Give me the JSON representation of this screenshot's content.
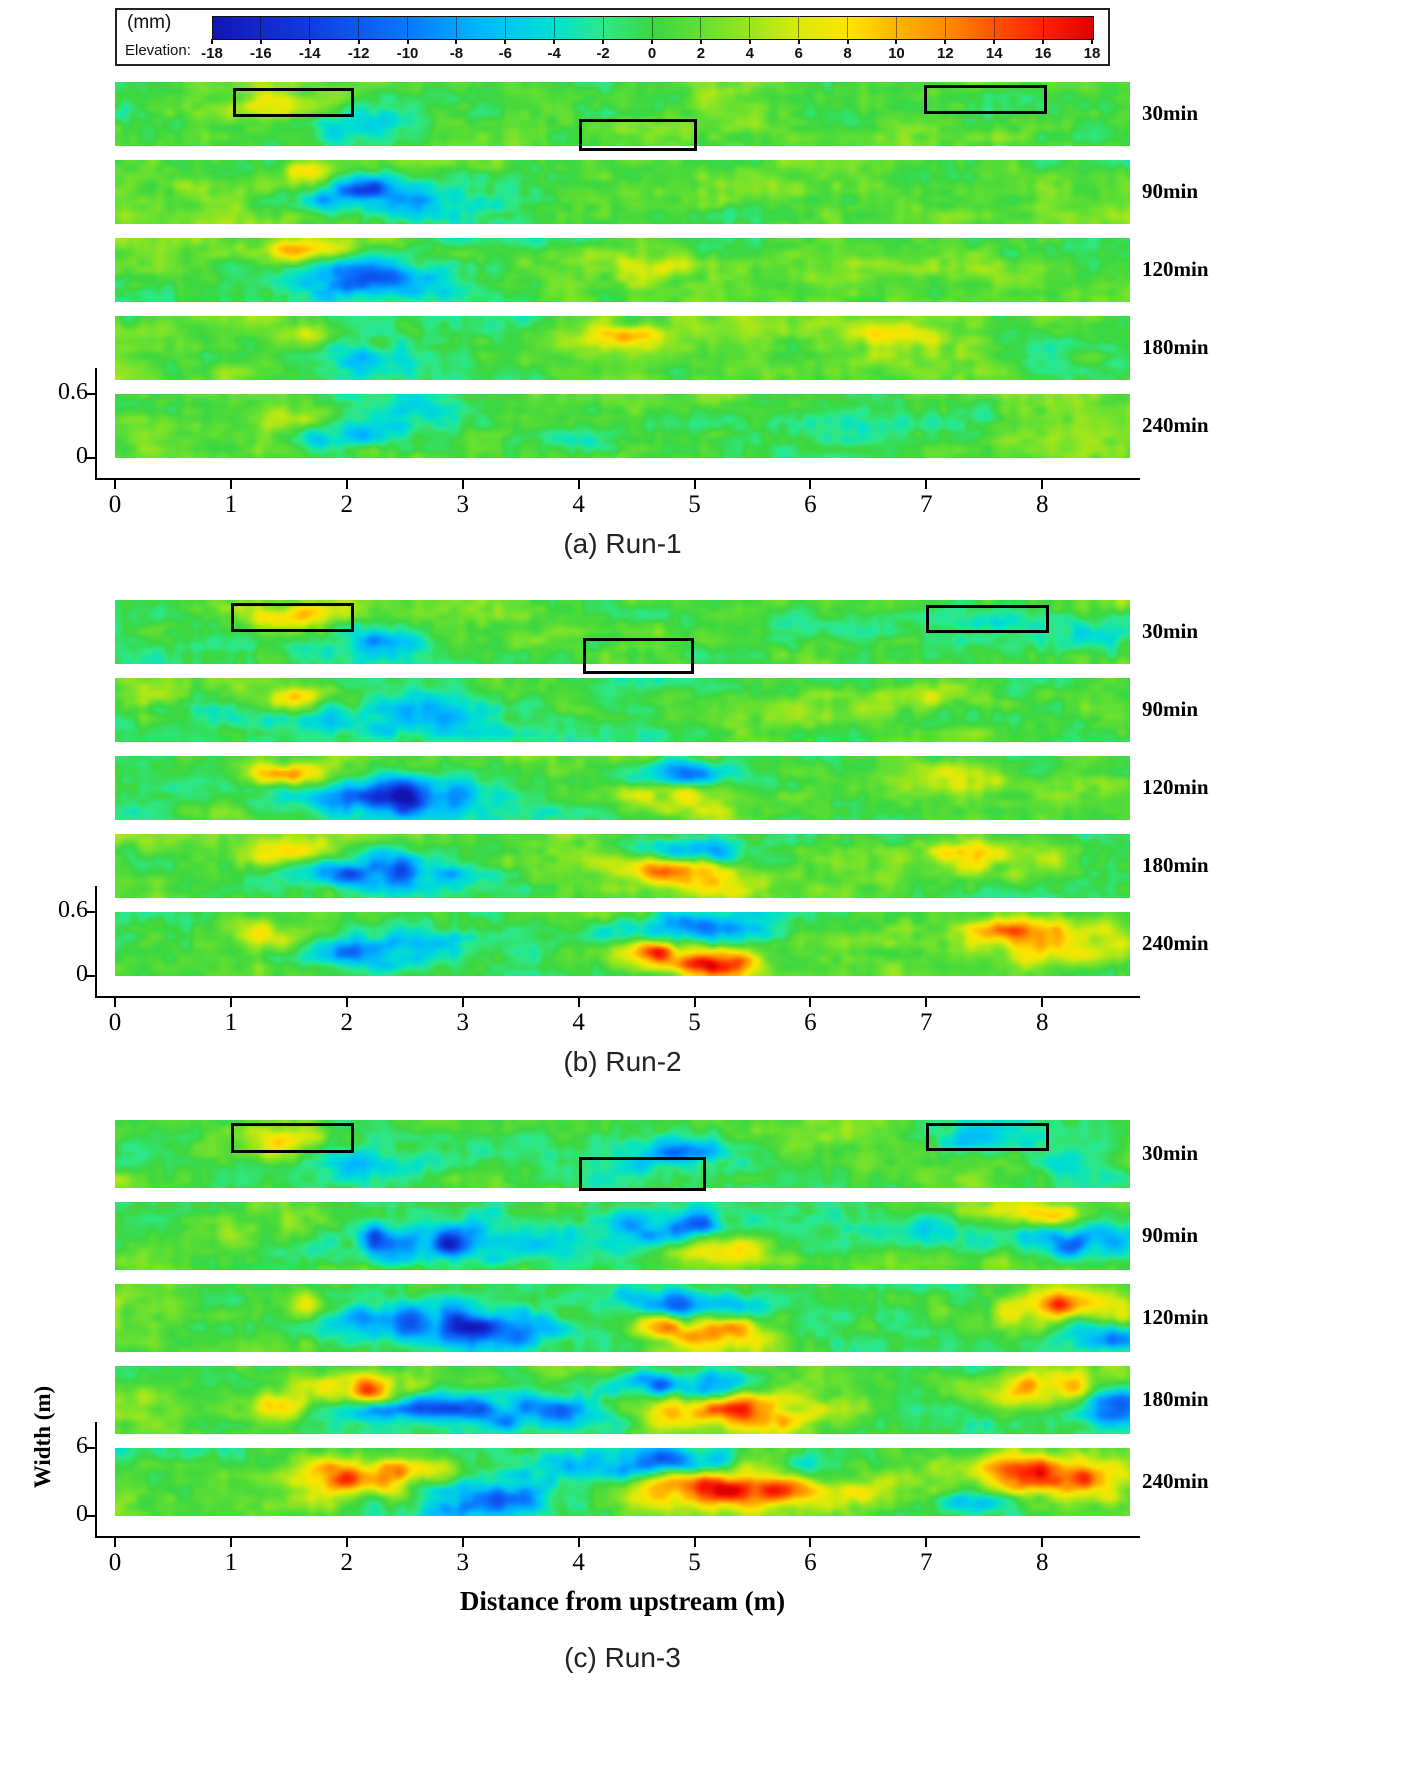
{
  "legend": {
    "unit": "(mm)",
    "label": "Elevation:"
  },
  "chart_data": {
    "type": "heatmap",
    "description": "Bed elevation (mm) maps of flume bed versus distance from upstream, at five elapsed times, for three experimental runs. Black boxes mark highlighted regions on the 30min maps.",
    "colorbar": {
      "unit": "(mm)",
      "label": "Elevation:",
      "min": -18,
      "max": 18,
      "ticks": [
        -18,
        -16,
        -14,
        -12,
        -10,
        -8,
        -6,
        -4,
        -2,
        0,
        2,
        4,
        6,
        8,
        10,
        12,
        14,
        16,
        18
      ],
      "colormap": [
        [
          -18,
          "#1414b4"
        ],
        [
          -14,
          "#0f3ce0"
        ],
        [
          -10,
          "#0a78ff"
        ],
        [
          -7,
          "#00b9ff"
        ],
        [
          -4,
          "#00e1cf"
        ],
        [
          -2,
          "#2ee887"
        ],
        [
          0,
          "#3bd741"
        ],
        [
          2,
          "#63e032"
        ],
        [
          4,
          "#9ce61e"
        ],
        [
          6,
          "#d9ea0a"
        ],
        [
          8,
          "#ffe400"
        ],
        [
          10,
          "#ffb400"
        ],
        [
          12,
          "#ff8c00"
        ],
        [
          14,
          "#ff5200"
        ],
        [
          16,
          "#ff2000"
        ],
        [
          18,
          "#df0000"
        ]
      ]
    },
    "x_axis": {
      "label": "Distance from upstream (m)",
      "ticks": [
        "0",
        "1",
        "2",
        "3",
        "4",
        "5",
        "6",
        "7",
        "8"
      ],
      "extent_m": 8.76
    },
    "y_axis": {
      "label": "Width (m)"
    },
    "time_labels": [
      "30min",
      "90min",
      "120min",
      "180min",
      "240min"
    ],
    "feature_format": "[x_m, y_fraction_from_top, x_radius_m, y_radius_fraction, amplitude_mm]",
    "panels": [
      {
        "id": "a",
        "run": "Run-1",
        "caption": "(a) Run-1",
        "y_tick_labels": [
          "0.6",
          "0"
        ],
        "highlight_boxes": [
          [
            1.02,
            2.06,
            0.1,
            0.55
          ],
          [
            4.0,
            5.02,
            0.58,
            1.08
          ],
          [
            6.98,
            8.04,
            0.05,
            0.5
          ]
        ],
        "strips": [
          {
            "time": "30min",
            "features": [
              [
                1.5,
                0.28,
                0.5,
                0.3,
                5
              ],
              [
                2.15,
                0.6,
                0.4,
                0.26,
                -7
              ],
              [
                4.5,
                0.72,
                0.5,
                0.3,
                3
              ],
              [
                7.5,
                0.3,
                0.5,
                0.3,
                -3
              ],
              [
                3.1,
                0.4,
                0.4,
                0.3,
                -3
              ]
            ]
          },
          {
            "time": "90min",
            "features": [
              [
                1.6,
                0.22,
                0.32,
                0.2,
                8
              ],
              [
                2.15,
                0.55,
                0.55,
                0.3,
                -11
              ],
              [
                2.7,
                0.8,
                0.4,
                0.25,
                -5
              ],
              [
                5.9,
                0.4,
                0.5,
                0.35,
                2
              ]
            ]
          },
          {
            "time": "120min",
            "features": [
              [
                1.62,
                0.18,
                0.35,
                0.2,
                9
              ],
              [
                2.25,
                0.6,
                0.65,
                0.3,
                -13
              ],
              [
                4.6,
                0.35,
                0.6,
                0.3,
                4
              ],
              [
                1.9,
                0.8,
                0.4,
                0.25,
                -5
              ]
            ]
          },
          {
            "time": "180min",
            "features": [
              [
                1.6,
                0.3,
                0.3,
                0.2,
                6
              ],
              [
                2.05,
                0.6,
                0.5,
                0.3,
                -8
              ],
              [
                4.35,
                0.25,
                0.5,
                0.25,
                9
              ],
              [
                6.55,
                0.35,
                0.6,
                0.3,
                7
              ],
              [
                8.3,
                0.6,
                0.5,
                0.3,
                -4
              ]
            ]
          },
          {
            "time": "240min",
            "features": [
              [
                1.55,
                0.35,
                0.35,
                0.22,
                6
              ],
              [
                2.0,
                0.62,
                0.55,
                0.3,
                -9
              ],
              [
                4.1,
                0.8,
                0.35,
                0.25,
                -5
              ],
              [
                7.3,
                0.35,
                0.5,
                0.3,
                -3
              ],
              [
                2.6,
                0.3,
                0.3,
                0.2,
                -4
              ]
            ]
          }
        ]
      },
      {
        "id": "b",
        "run": "Run-2",
        "caption": "(b) Run-2",
        "y_tick_labels": [
          "0.6",
          "0"
        ],
        "highlight_boxes": [
          [
            1.0,
            2.06,
            0.05,
            0.5
          ],
          [
            4.04,
            5.0,
            0.6,
            1.15
          ],
          [
            7.0,
            8.06,
            0.08,
            0.52
          ]
        ],
        "strips": [
          {
            "time": "30min",
            "features": [
              [
                1.5,
                0.25,
                0.55,
                0.28,
                8
              ],
              [
                2.15,
                0.62,
                0.45,
                0.28,
                -9
              ],
              [
                4.5,
                0.75,
                0.5,
                0.3,
                2
              ],
              [
                7.6,
                0.35,
                0.55,
                0.3,
                -5
              ],
              [
                8.45,
                0.55,
                0.35,
                0.3,
                -6
              ]
            ]
          },
          {
            "time": "90min",
            "features": [
              [
                1.55,
                0.3,
                0.38,
                0.22,
                8
              ],
              [
                2.35,
                0.6,
                0.7,
                0.3,
                -13
              ],
              [
                7.1,
                0.25,
                0.5,
                0.25,
                6
              ],
              [
                6.0,
                0.5,
                0.5,
                0.3,
                3
              ],
              [
                0.3,
                0.3,
                0.25,
                0.25,
                4
              ]
            ]
          },
          {
            "time": "120min",
            "features": [
              [
                1.45,
                0.3,
                0.38,
                0.22,
                9
              ],
              [
                2.35,
                0.62,
                0.75,
                0.3,
                -15
              ],
              [
                4.88,
                0.25,
                0.45,
                0.22,
                -11
              ],
              [
                4.78,
                0.58,
                0.42,
                0.25,
                9
              ],
              [
                7.15,
                0.3,
                0.45,
                0.25,
                7
              ]
            ]
          },
          {
            "time": "180min",
            "features": [
              [
                1.5,
                0.3,
                0.4,
                0.22,
                8
              ],
              [
                2.4,
                0.58,
                0.7,
                0.3,
                -13
              ],
              [
                4.95,
                0.28,
                0.5,
                0.22,
                -10
              ],
              [
                4.9,
                0.56,
                0.45,
                0.22,
                16
              ],
              [
                5.3,
                0.82,
                0.3,
                0.22,
                10
              ],
              [
                7.5,
                0.35,
                0.55,
                0.28,
                8
              ]
            ]
          },
          {
            "time": "240min",
            "features": [
              [
                1.5,
                0.35,
                0.45,
                0.25,
                8
              ],
              [
                2.15,
                0.6,
                0.6,
                0.3,
                -10
              ],
              [
                4.95,
                0.3,
                0.6,
                0.25,
                -15
              ],
              [
                4.85,
                0.64,
                0.5,
                0.25,
                17
              ],
              [
                5.25,
                0.88,
                0.3,
                0.2,
                12
              ],
              [
                8.25,
                0.45,
                0.6,
                0.35,
                13
              ],
              [
                7.6,
                0.3,
                0.4,
                0.25,
                7
              ]
            ]
          }
        ]
      },
      {
        "id": "c",
        "run": "Run-3",
        "caption": "(c) Run-3",
        "y_tick_labels": [
          "6",
          "0"
        ],
        "highlight_boxes": [
          [
            1.0,
            2.06,
            0.05,
            0.48
          ],
          [
            4.0,
            5.1,
            0.55,
            1.05
          ],
          [
            7.0,
            8.06,
            0.05,
            0.45
          ]
        ],
        "strips": [
          {
            "time": "30min",
            "features": [
              [
                1.5,
                0.25,
                0.55,
                0.28,
                9
              ],
              [
                2.15,
                0.62,
                0.5,
                0.3,
                -11
              ],
              [
                4.8,
                0.48,
                0.5,
                0.26,
                -8
              ],
              [
                7.5,
                0.3,
                0.6,
                0.26,
                -7
              ],
              [
                8.3,
                0.58,
                0.38,
                0.26,
                -5
              ]
            ]
          },
          {
            "time": "90min",
            "features": [
              [
                1.8,
                0.35,
                0.4,
                0.25,
                6
              ],
              [
                2.7,
                0.6,
                0.95,
                0.32,
                -15
              ],
              [
                4.9,
                0.35,
                0.6,
                0.28,
                -14
              ],
              [
                5.2,
                0.72,
                0.42,
                0.25,
                12
              ],
              [
                8.35,
                0.55,
                0.5,
                0.3,
                -13
              ],
              [
                8.1,
                0.18,
                0.4,
                0.2,
                10
              ],
              [
                7.0,
                0.45,
                0.45,
                0.25,
                -6
              ]
            ]
          },
          {
            "time": "120min",
            "features": [
              [
                1.8,
                0.3,
                0.38,
                0.22,
                9
              ],
              [
                2.6,
                0.58,
                0.9,
                0.3,
                -13
              ],
              [
                4.9,
                0.3,
                0.6,
                0.25,
                -14
              ],
              [
                5.05,
                0.66,
                0.52,
                0.28,
                16
              ],
              [
                8.2,
                0.35,
                0.48,
                0.28,
                13
              ],
              [
                8.55,
                0.68,
                0.4,
                0.26,
                -11
              ],
              [
                3.3,
                0.72,
                0.42,
                0.25,
                -6
              ]
            ]
          },
          {
            "time": "180min",
            "features": [
              [
                2.2,
                0.35,
                0.48,
                0.26,
                15
              ],
              [
                2.95,
                0.66,
                0.95,
                0.3,
                -15
              ],
              [
                4.8,
                0.28,
                0.6,
                0.22,
                -14
              ],
              [
                5.3,
                0.62,
                0.75,
                0.3,
                17
              ],
              [
                8.0,
                0.35,
                0.52,
                0.28,
                15
              ],
              [
                8.55,
                0.62,
                0.45,
                0.3,
                -13
              ],
              [
                1.4,
                0.62,
                0.32,
                0.2,
                8
              ],
              [
                4.05,
                0.72,
                0.38,
                0.25,
                -6
              ]
            ]
          },
          {
            "time": "240min",
            "features": [
              [
                2.2,
                0.45,
                0.62,
                0.32,
                17
              ],
              [
                2.95,
                0.78,
                0.85,
                0.28,
                -13
              ],
              [
                5.45,
                0.55,
                0.9,
                0.3,
                18
              ],
              [
                4.7,
                0.22,
                0.62,
                0.22,
                -14
              ],
              [
                6.05,
                0.3,
                0.4,
                0.2,
                -8
              ],
              [
                8.15,
                0.45,
                0.68,
                0.3,
                17
              ],
              [
                7.5,
                0.72,
                0.4,
                0.25,
                -8
              ],
              [
                3.85,
                0.3,
                0.4,
                0.25,
                -5
              ]
            ]
          }
        ]
      }
    ]
  }
}
